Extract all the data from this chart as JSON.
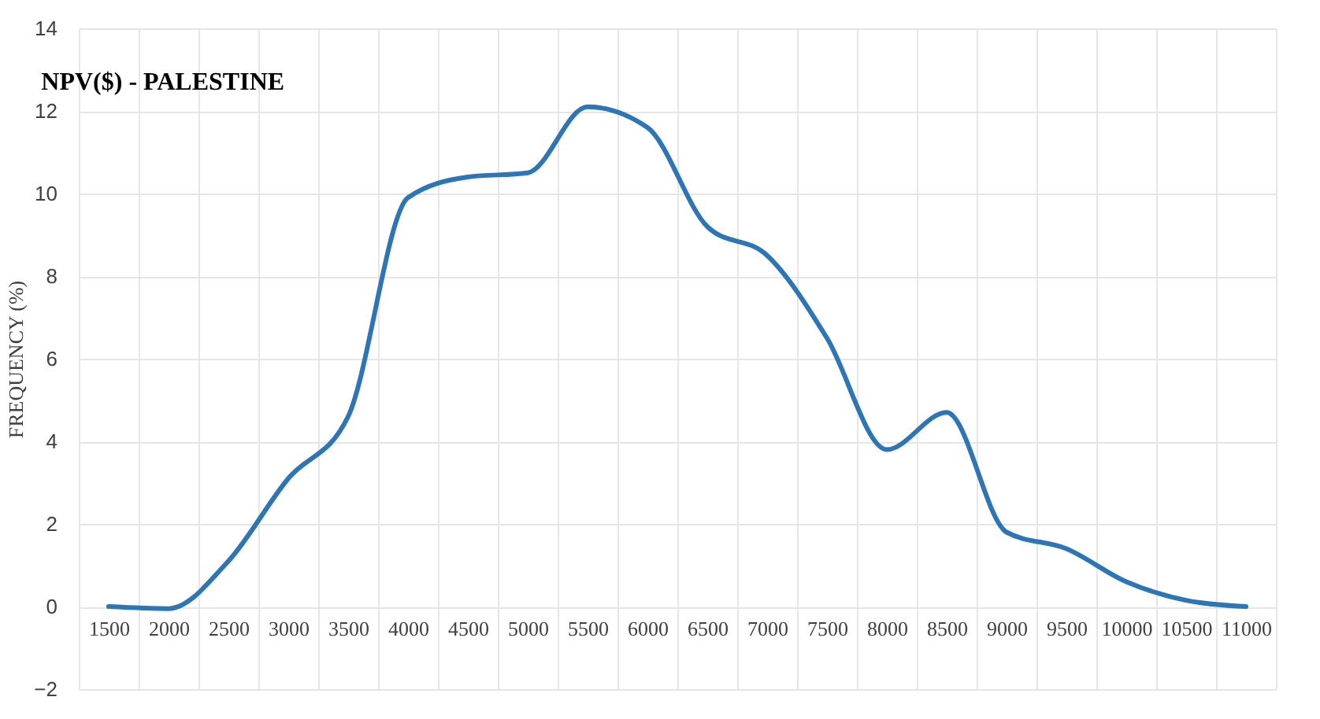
{
  "chart_data": {
    "type": "line",
    "title": "NPV($) - PALESTINE",
    "ylabel": "FREQUENCY (%)",
    "categories": [
      "1500",
      "2000",
      "2500",
      "3000",
      "3500",
      "4000",
      "4500",
      "5000",
      "5500",
      "6000",
      "6500",
      "7000",
      "7500",
      "8000",
      "8500",
      "9000",
      "9500",
      "10000",
      "10500",
      "11000"
    ],
    "series": [
      {
        "color": "#2e75b6",
        "values": [
          0,
          -0.05,
          1.1,
          3.1,
          4.6,
          9.9,
          10.4,
          10.5,
          12.1,
          11.6,
          9.2,
          8.5,
          6.5,
          3.8,
          4.7,
          1.8,
          1.4,
          0.6,
          0.15,
          0
        ]
      }
    ],
    "ylim": [
      -2,
      14
    ],
    "yticks": [
      -2,
      0,
      2,
      4,
      6,
      8,
      10,
      12,
      14
    ],
    "grid": true,
    "marker": "none",
    "line_style": "solid"
  }
}
